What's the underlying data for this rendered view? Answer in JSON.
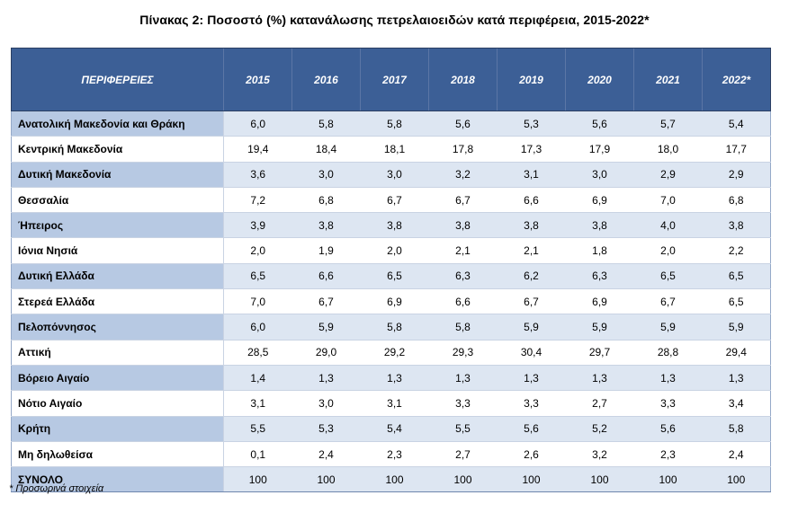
{
  "title": "Πίνακας 2: Ποσοστό (%) κατανάλωσης πετρελαιοειδών κατά περιφέρεια, 2015-2022*",
  "table": {
    "header": [
      "ΠΕΡΙΦΕΡΕΙΕΣ",
      "2015",
      "2016",
      "2017",
      "2018",
      "2019",
      "2020",
      "2021",
      "2022*"
    ],
    "rows": [
      [
        "Ανατολική Μακεδονία και Θράκη",
        "6,0",
        "5,8",
        "5,8",
        "5,6",
        "5,3",
        "5,6",
        "5,7",
        "5,4"
      ],
      [
        "Κεντρική Μακεδονία",
        "19,4",
        "18,4",
        "18,1",
        "17,8",
        "17,3",
        "17,9",
        "18,0",
        "17,7"
      ],
      [
        "Δυτική Μακεδονία",
        "3,6",
        "3,0",
        "3,0",
        "3,2",
        "3,1",
        "3,0",
        "2,9",
        "2,9"
      ],
      [
        "Θεσσαλία",
        "7,2",
        "6,8",
        "6,7",
        "6,7",
        "6,6",
        "6,9",
        "7,0",
        "6,8"
      ],
      [
        "Ήπειρος",
        "3,9",
        "3,8",
        "3,8",
        "3,8",
        "3,8",
        "3,8",
        "4,0",
        "3,8"
      ],
      [
        "Ιόνια Νησιά",
        "2,0",
        "1,9",
        "2,0",
        "2,1",
        "2,1",
        "1,8",
        "2,0",
        "2,2"
      ],
      [
        "Δυτική Ελλάδα",
        "6,5",
        "6,6",
        "6,5",
        "6,3",
        "6,2",
        "6,3",
        "6,5",
        "6,5"
      ],
      [
        "Στερεά Ελλάδα",
        "7,0",
        "6,7",
        "6,9",
        "6,6",
        "6,7",
        "6,9",
        "6,7",
        "6,5"
      ],
      [
        "Πελοπόννησος",
        "6,0",
        "5,9",
        "5,8",
        "5,8",
        "5,9",
        "5,9",
        "5,9",
        "5,9"
      ],
      [
        "Αττική",
        "28,5",
        "29,0",
        "29,2",
        "29,3",
        "30,4",
        "29,7",
        "28,8",
        "29,4"
      ],
      [
        "Βόρειο Αιγαίο",
        "1,4",
        "1,3",
        "1,3",
        "1,3",
        "1,3",
        "1,3",
        "1,3",
        "1,3"
      ],
      [
        "Νότιο Αιγαίο",
        "3,1",
        "3,0",
        "3,1",
        "3,3",
        "3,3",
        "2,7",
        "3,3",
        "3,4"
      ],
      [
        "Κρήτη",
        "5,5",
        "5,3",
        "5,4",
        "5,5",
        "5,6",
        "5,2",
        "5,6",
        "5,8"
      ],
      [
        "Μη δηλωθείσα",
        "0,1",
        "2,4",
        "2,3",
        "2,7",
        "2,6",
        "3,2",
        "2,3",
        "2,4"
      ],
      [
        "ΣΥΝΟΛΟ",
        "100",
        "100",
        "100",
        "100",
        "100",
        "100",
        "100",
        "100"
      ]
    ]
  },
  "footnote": "* Προσωρινά στοιχεία",
  "colors": {
    "header_bg": "#3c5f96",
    "header_text": "#ffffff",
    "band_region": "#b7c9e3",
    "band_cells": "#dde6f2"
  }
}
